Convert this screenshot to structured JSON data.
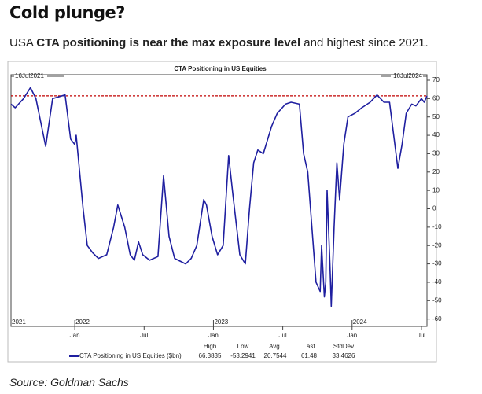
{
  "header": {
    "title": "Cold plunge?",
    "subtitle_parts": [
      "USA ",
      "CTA positioning is near the max exposure level",
      " and highest since 2021."
    ]
  },
  "source": "Source: Goldman Sachs",
  "chart_data": {
    "type": "line",
    "title": "CTA Positioning in US Equities",
    "start_label": "16Jul2021",
    "end_label": "16Jul2024",
    "x": [
      2021.54,
      2021.57,
      2021.63,
      2021.68,
      2021.72,
      2021.79,
      2021.84,
      2021.93,
      2021.97,
      2022.0,
      2022.01,
      2022.06,
      2022.09,
      2022.13,
      2022.17,
      2022.23,
      2022.28,
      2022.31,
      2022.36,
      2022.4,
      2022.43,
      2022.46,
      2022.49,
      2022.54,
      2022.6,
      2022.64,
      2022.68,
      2022.72,
      2022.8,
      2022.84,
      2022.88,
      2022.93,
      2022.95,
      2022.99,
      2023.03,
      2023.07,
      2023.11,
      2023.14,
      2023.19,
      2023.23,
      2023.26,
      2023.29,
      2023.32,
      2023.36,
      2023.42,
      2023.46,
      2023.52,
      2023.56,
      2023.62,
      2023.65,
      2023.68,
      2023.7,
      2023.74,
      2023.77,
      2023.78,
      2023.8,
      2023.81,
      2023.82,
      2023.84,
      2023.85,
      2023.87,
      2023.89,
      2023.91,
      2023.94,
      2023.97,
      2024.02,
      2024.07,
      2024.13,
      2024.18,
      2024.23,
      2024.27,
      2024.3,
      2024.33,
      2024.36,
      2024.39,
      2024.43,
      2024.46,
      2024.5,
      2024.52,
      2024.54
    ],
    "series": [
      {
        "name": "CTA Positioning in US Equities ($bn)",
        "color": "#1f1fa0",
        "values": [
          57,
          55,
          60,
          66,
          60,
          34,
          60,
          62,
          38,
          35,
          40,
          0,
          -20,
          -24,
          -27,
          -25,
          -10,
          2,
          -10,
          -25,
          -28,
          -18,
          -25,
          -28,
          -26,
          18,
          -15,
          -27,
          -30,
          -27,
          -20,
          5,
          2,
          -15,
          -25,
          -20,
          29,
          8,
          -25,
          -30,
          0,
          25,
          32,
          30,
          45,
          52,
          57,
          58,
          57,
          30,
          20,
          0,
          -40,
          -45,
          -20,
          -48,
          -40,
          10,
          -30,
          -53,
          -10,
          25,
          5,
          35,
          50,
          52,
          55,
          58,
          62,
          58,
          58,
          40,
          22,
          35,
          52,
          57,
          56,
          60,
          58,
          61.48
        ]
      }
    ],
    "ref_line": {
      "value": 61.48,
      "color": "#c00000"
    },
    "xlim": [
      2021.54,
      2024.54
    ],
    "xticks": [
      {
        "value": 2022.0,
        "label": "Jan"
      },
      {
        "value": 2022.5,
        "label": "Jul"
      },
      {
        "value": 2023.0,
        "label": "Jan"
      },
      {
        "value": 2023.5,
        "label": "Jul"
      },
      {
        "value": 2024.0,
        "label": "Jan"
      },
      {
        "value": 2024.5,
        "label": "Jul"
      }
    ],
    "year_ticks": [
      {
        "value": 2021.54,
        "label": "2021"
      },
      {
        "value": 2022.0,
        "label": "2022"
      },
      {
        "value": 2023.0,
        "label": "2023"
      },
      {
        "value": 2024.0,
        "label": "2024"
      }
    ],
    "ylim": [
      -64,
      73
    ],
    "yticks": [
      70,
      60,
      50,
      40,
      30,
      20,
      10,
      0,
      -10,
      -20,
      -30,
      -40,
      -50,
      -60
    ],
    "stats": [
      {
        "label": "High",
        "value": 66.3835
      },
      {
        "label": "Low",
        "value": -53.2941
      },
      {
        "label": "Avg.",
        "value": 20.7544
      },
      {
        "label": "Last",
        "value": 61.48
      },
      {
        "label": "StdDev",
        "value": 33.4626
      }
    ]
  }
}
